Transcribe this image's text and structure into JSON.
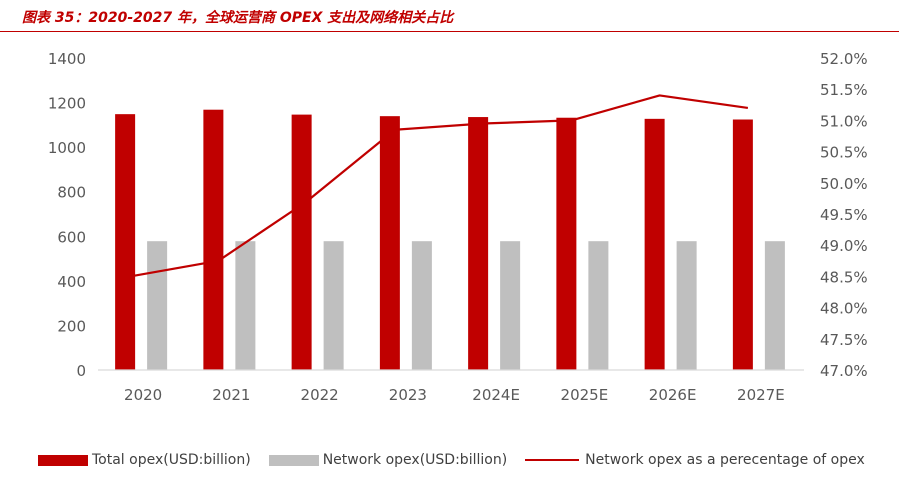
{
  "title": "图表 35：2020-2027 年，全球运营商 OPEX 支出及网络相关占比",
  "colors": {
    "total": "#c00000",
    "network": "#bfbfbf",
    "line": "#c00000",
    "axis_text": "#595959",
    "axis_line": "#d9d9d9"
  },
  "chart_data": {
    "type": "bar",
    "categories": [
      "2020",
      "2021",
      "2022",
      "2023",
      "2024E",
      "2025E",
      "2026E",
      "2027E"
    ],
    "series": [
      {
        "name": "Total opex(USD:billion)",
        "type": "bar",
        "axis": "left",
        "values": [
          1148,
          1168,
          1146,
          1139,
          1135,
          1132,
          1127,
          1124
        ]
      },
      {
        "name": "Network opex(USD:billion)",
        "type": "bar",
        "axis": "left",
        "values": [
          578,
          578,
          578,
          578,
          578,
          578,
          578,
          578
        ]
      },
      {
        "name": "Network opex as a perecentage of opex",
        "type": "line",
        "axis": "right",
        "values": [
          48.5,
          48.75,
          49.7,
          50.85,
          50.95,
          51.0,
          51.4,
          51.2
        ]
      }
    ],
    "y_left": {
      "min": 0,
      "max": 1400,
      "ticks": [
        "0",
        "200",
        "400",
        "600",
        "800",
        "1000",
        "1200",
        "1400"
      ]
    },
    "y_right": {
      "min": 47.0,
      "max": 52.0,
      "ticks": [
        "47.0%",
        "47.5%",
        "48.0%",
        "48.5%",
        "49.0%",
        "49.5%",
        "50.0%",
        "50.5%",
        "51.0%",
        "51.5%",
        "52.0%"
      ]
    },
    "legend_position": "bottom",
    "grid": false
  }
}
